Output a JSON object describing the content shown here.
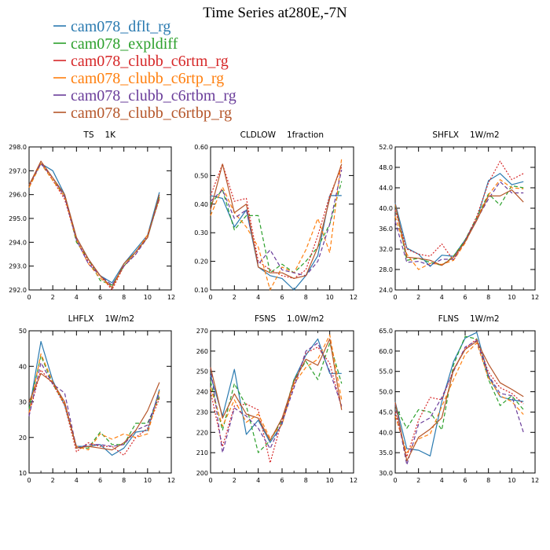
{
  "figure": {
    "title": "Time Series at280E,-7N"
  },
  "legend": [
    {
      "name": "cam078_dflt_rg",
      "color": "#2a7ab0",
      "dash": "solid"
    },
    {
      "name": "cam078_expldiff",
      "color": "#2ca02c",
      "dash": "dashed"
    },
    {
      "name": "cam078_clubb_c6rtm_rg",
      "color": "#d62728",
      "dash": "dotted"
    },
    {
      "name": "cam078_clubb_c6rtp_rg",
      "color": "#ff7f0e",
      "dash": "dashed"
    },
    {
      "name": "cam078_clubb_c6rtbm_rg",
      "color": "#6a3d9a",
      "dash": "dashed"
    },
    {
      "name": "cam078_clubb_c6rtbp_rg",
      "color": "#b5562a",
      "dash": "solid"
    }
  ],
  "chart_data": [
    {
      "type": "line",
      "title_left": "TS",
      "title_right": "1K",
      "x": [
        0,
        1,
        2,
        3,
        4,
        5,
        6,
        7,
        8,
        9,
        10,
        11
      ],
      "xlim": [
        0,
        12
      ],
      "xticks": [
        0,
        2,
        4,
        6,
        8,
        10,
        12
      ],
      "ylim": [
        292.0,
        298.0
      ],
      "yticks": [
        292.0,
        293.0,
        294.0,
        295.0,
        296.0,
        297.0,
        298.0
      ],
      "ytick_decimals": 1,
      "series": [
        {
          "values": [
            296.4,
            297.3,
            297.0,
            296.0,
            294.2,
            293.3,
            292.6,
            292.3,
            293.1,
            293.7,
            294.3,
            296.1
          ]
        },
        {
          "values": [
            296.3,
            297.3,
            296.6,
            296.0,
            294.0,
            293.3,
            292.4,
            292.2,
            293.0,
            293.6,
            294.2,
            295.9
          ]
        },
        {
          "values": [
            296.3,
            297.4,
            296.6,
            295.8,
            294.1,
            293.2,
            292.6,
            292.0,
            293.0,
            293.5,
            294.3,
            295.8
          ]
        },
        {
          "values": [
            296.3,
            297.3,
            296.6,
            295.9,
            294.1,
            293.1,
            292.5,
            292.1,
            293.0,
            293.6,
            294.3,
            295.8
          ]
        },
        {
          "values": [
            296.4,
            297.3,
            296.7,
            295.9,
            294.1,
            293.1,
            292.6,
            292.2,
            293.0,
            293.5,
            294.2,
            295.9
          ]
        },
        {
          "values": [
            296.4,
            297.4,
            296.7,
            296.0,
            294.2,
            293.3,
            292.6,
            292.1,
            293.1,
            293.6,
            294.2,
            296.0
          ]
        }
      ]
    },
    {
      "type": "line",
      "title_left": "CLDLOW",
      "title_right": "1fraction",
      "x": [
        0,
        1,
        2,
        3,
        4,
        5,
        6,
        7,
        8,
        9,
        10,
        11
      ],
      "xlim": [
        0,
        12
      ],
      "xticks": [
        0,
        2,
        4,
        6,
        8,
        10,
        12
      ],
      "ylim": [
        0.1,
        0.6
      ],
      "yticks": [
        0.1,
        0.2,
        0.3,
        0.4,
        0.5,
        0.6
      ],
      "ytick_decimals": 2,
      "series": [
        {
          "values": [
            0.43,
            0.42,
            0.32,
            0.38,
            0.18,
            0.15,
            0.14,
            0.1,
            0.15,
            0.22,
            0.43,
            0.43
          ]
        },
        {
          "values": [
            0.4,
            0.45,
            0.31,
            0.36,
            0.36,
            0.16,
            0.19,
            0.16,
            0.2,
            0.25,
            0.33,
            0.48
          ]
        },
        {
          "values": [
            0.43,
            0.54,
            0.41,
            0.42,
            0.2,
            0.17,
            0.15,
            0.14,
            0.17,
            0.29,
            0.43,
            0.53
          ]
        },
        {
          "values": [
            0.36,
            0.46,
            0.37,
            0.32,
            0.25,
            0.1,
            0.18,
            0.16,
            0.24,
            0.35,
            0.23,
            0.56
          ]
        },
        {
          "values": [
            0.41,
            0.45,
            0.35,
            0.38,
            0.19,
            0.24,
            0.17,
            0.16,
            0.15,
            0.2,
            0.33,
            0.52
          ]
        },
        {
          "values": [
            0.38,
            0.54,
            0.37,
            0.4,
            0.18,
            0.16,
            0.16,
            0.14,
            0.15,
            0.25,
            0.42,
            0.54
          ]
        }
      ]
    },
    {
      "type": "line",
      "title_left": "SHFLX",
      "title_right": "1W/m2",
      "x": [
        0,
        1,
        2,
        3,
        4,
        5,
        6,
        7,
        8,
        9,
        10,
        11
      ],
      "xlim": [
        0,
        12
      ],
      "xticks": [
        0,
        2,
        4,
        6,
        8,
        10,
        12
      ],
      "ylim": [
        24.0,
        52.0
      ],
      "yticks": [
        24.0,
        28.0,
        32.0,
        36.0,
        40.0,
        44.0,
        48.0,
        52.0
      ],
      "ytick_decimals": 1,
      "series": [
        {
          "values": [
            41.0,
            32.2,
            31.0,
            28.6,
            30.8,
            30.6,
            33.8,
            37.8,
            45.4,
            46.8,
            44.6,
            45.2
          ]
        },
        {
          "values": [
            40.6,
            29.8,
            30.2,
            29.4,
            28.8,
            30.6,
            33.8,
            38.2,
            42.8,
            40.6,
            44.4,
            44.0
          ]
        },
        {
          "values": [
            39.6,
            32.0,
            31.0,
            30.6,
            33.0,
            29.8,
            33.6,
            38.4,
            45.0,
            49.2,
            45.6,
            46.8
          ]
        },
        {
          "values": [
            38.4,
            31.0,
            28.0,
            29.2,
            29.0,
            29.8,
            33.2,
            38.0,
            42.6,
            45.6,
            44.0,
            43.8
          ]
        },
        {
          "values": [
            37.4,
            29.4,
            29.6,
            28.8,
            30.0,
            30.0,
            33.6,
            37.8,
            41.8,
            45.2,
            43.0,
            43.0
          ]
        },
        {
          "values": [
            40.8,
            30.4,
            30.2,
            29.8,
            28.8,
            30.4,
            33.4,
            37.6,
            42.4,
            42.4,
            43.6,
            41.2
          ]
        }
      ]
    },
    {
      "type": "line",
      "title_left": "LHFLX",
      "title_right": "1W/m2",
      "x": [
        0,
        1,
        2,
        3,
        4,
        5,
        6,
        7,
        8,
        9,
        10,
        11
      ],
      "xlim": [
        0,
        12
      ],
      "xticks": [
        0,
        2,
        4,
        6,
        8,
        10,
        12
      ],
      "ylim": [
        10,
        50
      ],
      "yticks": [
        10,
        20,
        30,
        40,
        50
      ],
      "ytick_decimals": 0,
      "series": [
        {
          "values": [
            27.5,
            47.0,
            36.0,
            29.0,
            17.5,
            17.5,
            18.0,
            15.0,
            17.0,
            21.5,
            22.0,
            33.5
          ]
        },
        {
          "values": [
            28.0,
            43.0,
            35.0,
            29.5,
            17.0,
            17.0,
            21.5,
            18.0,
            18.0,
            24.0,
            24.0,
            31.5
          ]
        },
        {
          "values": [
            26.5,
            39.0,
            35.0,
            29.0,
            16.0,
            18.5,
            17.5,
            17.5,
            15.0,
            20.0,
            22.5,
            31.0
          ]
        },
        {
          "values": [
            27.0,
            43.5,
            35.5,
            29.5,
            17.5,
            16.5,
            21.0,
            19.5,
            21.0,
            20.0,
            21.0,
            33.0
          ]
        },
        {
          "values": [
            26.0,
            41.0,
            35.0,
            32.5,
            17.0,
            18.0,
            18.0,
            17.5,
            18.0,
            22.0,
            23.5,
            32.5
          ]
        },
        {
          "values": [
            30.0,
            38.0,
            35.5,
            30.0,
            17.0,
            17.5,
            17.0,
            16.5,
            18.5,
            22.0,
            27.5,
            35.5
          ]
        }
      ]
    },
    {
      "type": "line",
      "title_left": "FSNS",
      "title_right": "1.0W/m2",
      "x": [
        0,
        1,
        2,
        3,
        4,
        5,
        6,
        7,
        8,
        9,
        10,
        11
      ],
      "xlim": [
        0,
        12
      ],
      "xticks": [
        0,
        2,
        4,
        6,
        8,
        10,
        12
      ],
      "ylim": [
        200,
        270
      ],
      "yticks": [
        200,
        210,
        220,
        230,
        240,
        250,
        260,
        270
      ],
      "ytick_decimals": 0,
      "series": [
        {
          "values": [
            248,
            228,
            251,
            219,
            226,
            215,
            224,
            246,
            258,
            266,
            249,
            249
          ]
        },
        {
          "values": [
            245,
            221,
            244,
            233,
            210,
            216,
            226,
            246,
            255,
            246,
            264,
            244
          ]
        },
        {
          "values": [
            240,
            213,
            233,
            234,
            231,
            205,
            226,
            243,
            259,
            262,
            254,
            232
          ]
        },
        {
          "values": [
            242,
            223,
            236,
            225,
            229,
            217,
            224,
            244,
            252,
            256,
            268,
            236
          ]
        },
        {
          "values": [
            252,
            210,
            232,
            228,
            222,
            212,
            225,
            242,
            260,
            264,
            250,
            233
          ]
        },
        {
          "values": [
            252,
            227,
            239,
            229,
            227,
            216,
            227,
            245,
            256,
            253,
            266,
            231
          ]
        }
      ]
    },
    {
      "type": "line",
      "title_left": "FLNS",
      "title_right": "1W/m2",
      "x": [
        0,
        1,
        2,
        3,
        4,
        5,
        6,
        7,
        8,
        9,
        10,
        11
      ],
      "xlim": [
        0,
        12
      ],
      "xticks": [
        0,
        2,
        4,
        6,
        8,
        10,
        12
      ],
      "ylim": [
        30.0,
        65.0
      ],
      "yticks": [
        30.0,
        35.0,
        40.0,
        45.0,
        50.0,
        55.0,
        60.0,
        65.0
      ],
      "ytick_decimals": 1,
      "series": [
        {
          "values": [
            47.5,
            36.0,
            35.6,
            34.2,
            47.6,
            57.4,
            63.2,
            64.6,
            53.8,
            48.8,
            48.0,
            47.6
          ]
        },
        {
          "values": [
            46.5,
            41.0,
            45.6,
            45.0,
            40.6,
            56.6,
            63.6,
            63.0,
            53.0,
            46.6,
            49.0,
            45.6
          ]
        },
        {
          "values": [
            45.0,
            34.0,
            43.0,
            48.6,
            48.0,
            55.4,
            60.6,
            63.0,
            54.8,
            51.0,
            49.6,
            47.0
          ]
        },
        {
          "values": [
            44.0,
            35.0,
            38.4,
            39.6,
            46.4,
            53.0,
            59.2,
            62.0,
            53.4,
            49.0,
            47.6,
            44.4
          ]
        },
        {
          "values": [
            47.0,
            32.0,
            42.0,
            43.6,
            48.6,
            55.0,
            61.0,
            62.6,
            54.0,
            49.6,
            49.0,
            40.0
          ]
        },
        {
          "values": [
            47.4,
            33.0,
            38.8,
            40.8,
            43.6,
            55.4,
            60.4,
            62.4,
            56.8,
            52.2,
            50.6,
            48.8
          ]
        }
      ]
    }
  ]
}
